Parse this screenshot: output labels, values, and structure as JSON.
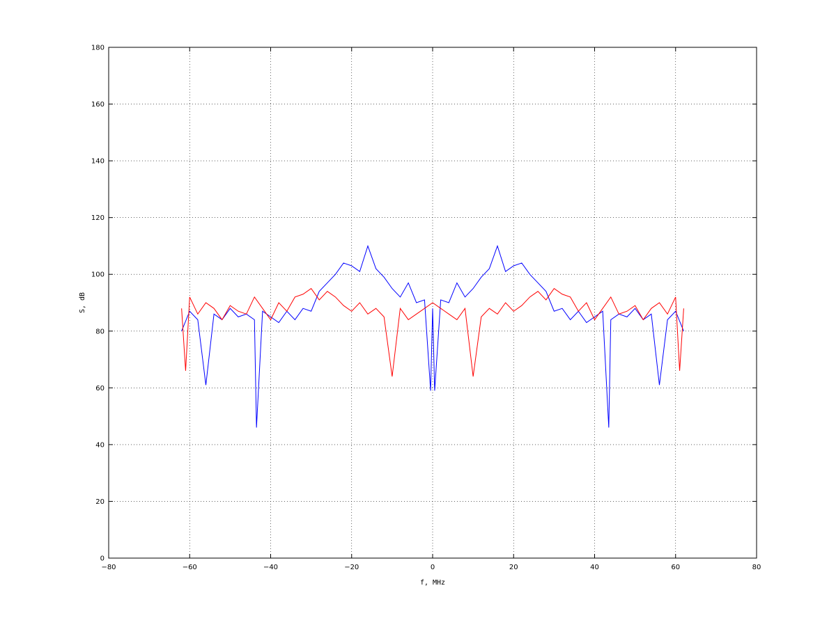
{
  "chart_data": {
    "type": "line",
    "title": "",
    "xlabel": "f, MHz",
    "ylabel": "S, dB",
    "xlim": [
      -80,
      80
    ],
    "ylim": [
      0,
      180
    ],
    "x_ticks": [
      -80,
      -60,
      -40,
      -20,
      0,
      20,
      40,
      60,
      80
    ],
    "y_ticks": [
      0,
      20,
      40,
      60,
      80,
      100,
      120,
      140,
      160,
      180
    ],
    "x_tick_labels": [
      "−80",
      "−60",
      "−40",
      "−20",
      "0",
      "20",
      "40",
      "60",
      "80"
    ],
    "y_tick_labels": [
      "0",
      "20",
      "40",
      "60",
      "80",
      "100",
      "120",
      "140",
      "160",
      "180"
    ],
    "grid": true,
    "legend": "none",
    "series": [
      {
        "color": "#0000ff",
        "x": [
          -62,
          -60,
          -58,
          -56,
          -54,
          -52,
          -50,
          -48,
          -46,
          -44,
          -43.5,
          -42,
          -40,
          -38,
          -36,
          -34,
          -32,
          -30,
          -28,
          -26,
          -24,
          -22,
          -20,
          -18,
          -16,
          -14,
          -12,
          -10,
          -8,
          -6,
          -4,
          -2,
          -0.5,
          0,
          0.5,
          2,
          4,
          6,
          8,
          10,
          12,
          14,
          16,
          18,
          20,
          22,
          24,
          26,
          28,
          30,
          32,
          34,
          36,
          38,
          40,
          42,
          43.5,
          44,
          46,
          48,
          50,
          52,
          54,
          56,
          58,
          60,
          62
        ],
        "y": [
          80,
          87,
          84,
          61,
          86,
          84,
          88,
          85,
          86,
          84,
          46,
          87,
          85,
          83,
          87,
          84,
          88,
          87,
          94,
          97,
          100,
          104,
          103,
          101,
          110,
          102,
          99,
          95,
          92,
          97,
          90,
          91,
          59,
          88,
          59,
          91,
          90,
          97,
          92,
          95,
          99,
          102,
          110,
          101,
          103,
          104,
          100,
          97,
          94,
          87,
          88,
          84,
          87,
          83,
          85,
          87,
          46,
          84,
          86,
          85,
          88,
          84,
          86,
          61,
          84,
          87,
          80
        ]
      },
      {
        "color": "#ff0000",
        "x": [
          -62,
          -61,
          -60,
          -58,
          -56,
          -54,
          -52,
          -50,
          -48,
          -46,
          -44,
          -42,
          -40,
          -38,
          -36,
          -34,
          -32,
          -30,
          -28,
          -26,
          -24,
          -22,
          -20,
          -18,
          -16,
          -14,
          -12,
          -10,
          -8,
          -6,
          -4,
          -2,
          0,
          2,
          4,
          6,
          8,
          10,
          12,
          14,
          16,
          18,
          20,
          22,
          24,
          26,
          28,
          30,
          32,
          34,
          36,
          38,
          40,
          42,
          44,
          46,
          48,
          50,
          52,
          54,
          56,
          58,
          60,
          61,
          62
        ],
        "y": [
          88,
          66,
          92,
          86,
          90,
          88,
          84,
          89,
          87,
          86,
          92,
          88,
          84,
          90,
          87,
          92,
          93,
          95,
          91,
          94,
          92,
          89,
          87,
          90,
          86,
          88,
          85,
          64,
          88,
          84,
          86,
          88,
          90,
          88,
          86,
          84,
          88,
          64,
          85,
          88,
          86,
          90,
          87,
          89,
          92,
          94,
          91,
          95,
          93,
          92,
          87,
          90,
          84,
          88,
          92,
          86,
          87,
          89,
          84,
          88,
          90,
          86,
          92,
          66,
          88
        ]
      }
    ]
  }
}
